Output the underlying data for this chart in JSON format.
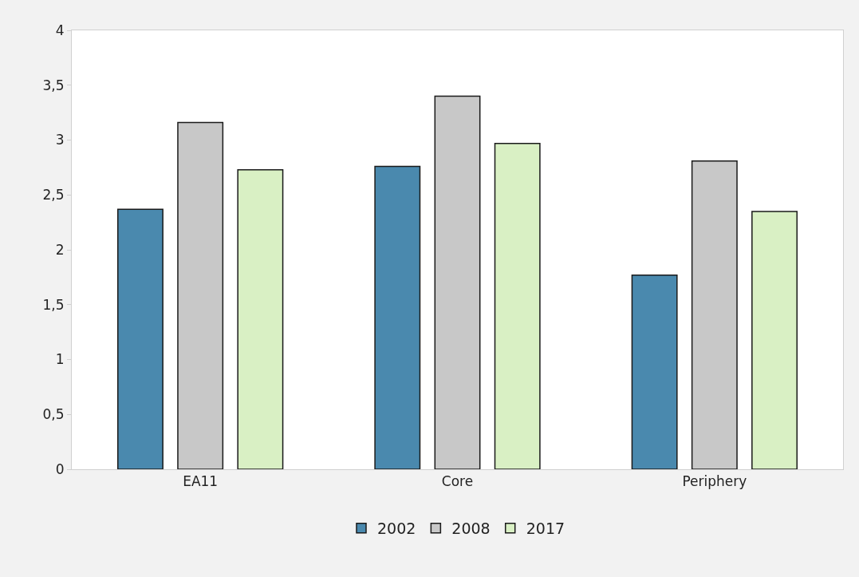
{
  "chart_data": {
    "type": "bar",
    "categories": [
      "EA11",
      "Core",
      "Periphery"
    ],
    "series": [
      {
        "name": "2002",
        "color": "#4a89ae",
        "values": [
          2.37,
          2.76,
          1.77
        ]
      },
      {
        "name": "2008",
        "color": "#c8c8c8",
        "values": [
          3.16,
          3.4,
          2.81
        ]
      },
      {
        "name": "2017",
        "color": "#d9f0c4",
        "values": [
          2.73,
          2.97,
          2.35
        ]
      }
    ],
    "ylim": [
      0,
      4
    ],
    "yticks": [
      0,
      {
        "value": 0.5,
        "label": "0,5"
      },
      1,
      {
        "value": 1.5,
        "label": "1,5"
      },
      2,
      {
        "value": 2.5,
        "label": "2,5"
      },
      3,
      {
        "value": 3.5,
        "label": "3,5"
      },
      4
    ],
    "legend": "bottom"
  }
}
